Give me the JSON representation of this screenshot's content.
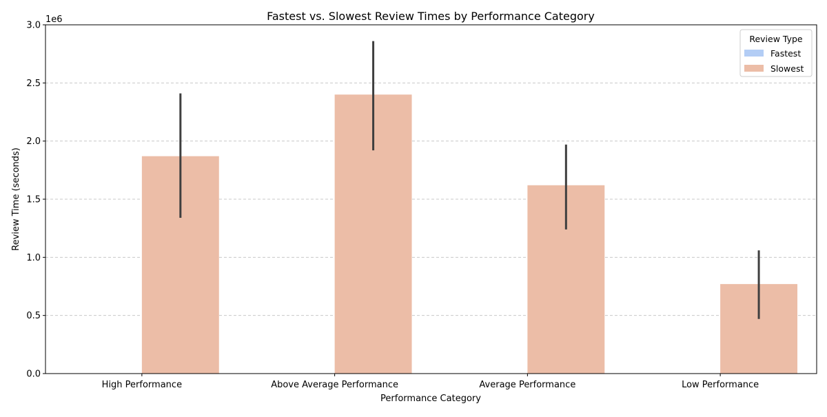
{
  "chart_data": {
    "type": "bar",
    "title": "Fastest vs. Slowest Review Times by Performance Category",
    "xlabel": "Performance Category",
    "ylabel": "Review Time (seconds)",
    "y_offset_label": "1e6",
    "ylim": [
      0,
      3.0
    ],
    "y_scale_multiplier": 1000000,
    "yticks": [
      0.0,
      0.5,
      1.0,
      1.5,
      2.0,
      2.5,
      3.0
    ],
    "ytick_labels": [
      "0.0",
      "0.5",
      "1.0",
      "1.5",
      "2.0",
      "2.5",
      "3.0"
    ],
    "grid": "y",
    "categories": [
      "High Performance",
      "Above Average Performance",
      "Average Performance",
      "Low Performance"
    ],
    "series": [
      {
        "name": "Fastest",
        "color": "#b3cdf5",
        "values": [
          0,
          0,
          0,
          0
        ],
        "ci_low": [
          null,
          null,
          null,
          null
        ],
        "ci_high": [
          null,
          null,
          null,
          null
        ]
      },
      {
        "name": "Slowest",
        "color": "#ecbda7",
        "values": [
          1.87,
          2.4,
          1.62,
          0.77
        ],
        "ci_low": [
          1.34,
          1.92,
          1.24,
          0.47
        ],
        "ci_high": [
          2.41,
          2.86,
          1.97,
          1.06
        ]
      }
    ],
    "legend": {
      "title": "Review Type",
      "placement": "top-right"
    }
  }
}
